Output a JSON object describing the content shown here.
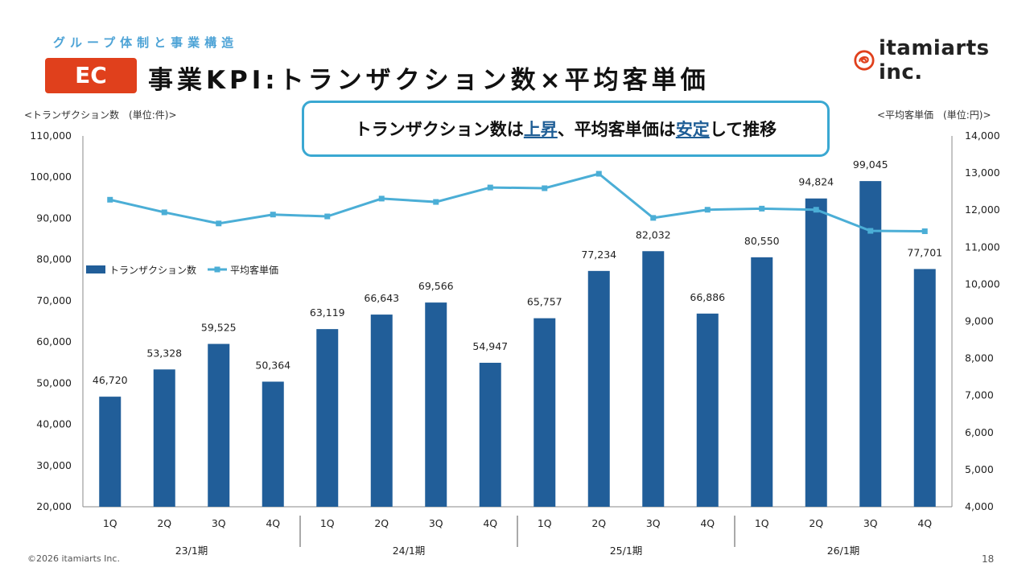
{
  "header": {
    "section_label": "グループ体制と事業構造",
    "badge": "EC",
    "title": "事業KPI:トランザクション数×平均客単価"
  },
  "logo": {
    "text": "itamiarts inc.",
    "brand_color": "#e0401c"
  },
  "callout": {
    "part1": "トランザクション数は",
    "hl1": "上昇",
    "part2": "、平均客単価は",
    "hl2": "安定",
    "part3": "して推移"
  },
  "units": {
    "left": "<トランザクション数　(単位:件)>",
    "right": "<平均客単価　(単位:円)>"
  },
  "footer": {
    "copyright": "©2026 itamiarts Inc.",
    "page": "18"
  },
  "chart_data": {
    "type": "bar",
    "categories": [
      "1Q",
      "2Q",
      "3Q",
      "4Q",
      "1Q",
      "2Q",
      "3Q",
      "4Q",
      "1Q",
      "2Q",
      "3Q",
      "4Q",
      "1Q",
      "2Q",
      "3Q",
      "4Q"
    ],
    "groups": [
      "23/1期",
      "24/1期",
      "25/1期",
      "26/1期"
    ],
    "series": [
      {
        "name": "トランザクション数",
        "type": "bar",
        "axis": "left",
        "color": "#215e99",
        "values": [
          46720,
          53328,
          59525,
          50364,
          63119,
          66643,
          69566,
          54947,
          65757,
          77234,
          82032,
          66886,
          80550,
          94824,
          99045,
          77701
        ],
        "labels": [
          "46,720",
          "53,328",
          "59,525",
          "50,364",
          "63,119",
          "66,643",
          "69,566",
          "54,947",
          "65,757",
          "77,234",
          "82,032",
          "66,886",
          "80,550",
          "94,824",
          "99,045",
          "77,701"
        ]
      },
      {
        "name": "平均客単価",
        "type": "line",
        "axis": "right",
        "color": "#4baed6",
        "values": [
          12280,
          11940,
          11640,
          11880,
          11830,
          12310,
          12220,
          12610,
          12590,
          12980,
          11790,
          12010,
          12040,
          12010,
          11440,
          11430
        ]
      }
    ],
    "y_left": {
      "min": 20000,
      "max": 110000,
      "step": 10000,
      "ticks": [
        "20,000",
        "30,000",
        "40,000",
        "50,000",
        "60,000",
        "70,000",
        "80,000",
        "90,000",
        "100,000",
        "110,000"
      ]
    },
    "y_right": {
      "min": 4000,
      "max": 14000,
      "step": 1000,
      "ticks": [
        "4,000",
        "5,000",
        "6,000",
        "7,000",
        "8,000",
        "9,000",
        "10,000",
        "11,000",
        "12,000",
        "13,000",
        "14,000"
      ]
    },
    "legend": {
      "position": "left-middle"
    }
  }
}
